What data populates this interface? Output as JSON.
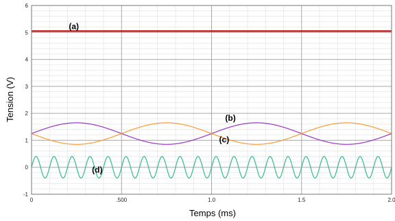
{
  "chart_data": {
    "type": "line",
    "xlabel": "Temps (ms)",
    "ylabel": "Tension (V)",
    "xlim": [
      0,
      2.0
    ],
    "ylim": [
      -1,
      6
    ],
    "x_ticks": [
      {
        "value": 0,
        "label": "0"
      },
      {
        "value": 0.5,
        "label": ".500"
      },
      {
        "value": 1.0,
        "label": "1.0"
      },
      {
        "value": 1.5,
        "label": "1.5"
      },
      {
        "value": 2.0,
        "label": "2.0"
      }
    ],
    "y_ticks": [
      {
        "value": -1,
        "label": "-1"
      },
      {
        "value": 0,
        "label": "0"
      },
      {
        "value": 1,
        "label": "1"
      },
      {
        "value": 2,
        "label": "2"
      },
      {
        "value": 3,
        "label": "3"
      },
      {
        "value": 4,
        "label": "4"
      },
      {
        "value": 5,
        "label": "5"
      },
      {
        "value": 6,
        "label": "6"
      }
    ],
    "grid": true,
    "minor_grid_divisions": 5,
    "series": [
      {
        "name": "(a)",
        "kind": "constant",
        "value": 5.05,
        "color": "#cc0000"
      },
      {
        "name": "(b)",
        "kind": "sine",
        "offset": 1.25,
        "amplitude": 0.4,
        "period_ms": 1.0,
        "phase": 0,
        "color": "#9933cc"
      },
      {
        "name": "(c)",
        "kind": "sine",
        "offset": 1.25,
        "amplitude": 0.4,
        "period_ms": 1.0,
        "phase": 3.14159,
        "color": "#ff9933"
      },
      {
        "name": "(d)",
        "kind": "sine",
        "offset": 0.0,
        "amplitude": 0.4,
        "period_ms": 0.1,
        "phase": 0,
        "color": "#33bb88"
      }
    ],
    "annotations": [
      {
        "text": "(a)",
        "x": 0.235,
        "y": 5.05
      },
      {
        "text": "(b)",
        "x": 1.105,
        "y": 1.65
      },
      {
        "text": "(c)",
        "x": 1.07,
        "y": 0.85
      },
      {
        "text": "(d)",
        "x": 0.365,
        "y": -0.27
      }
    ]
  }
}
